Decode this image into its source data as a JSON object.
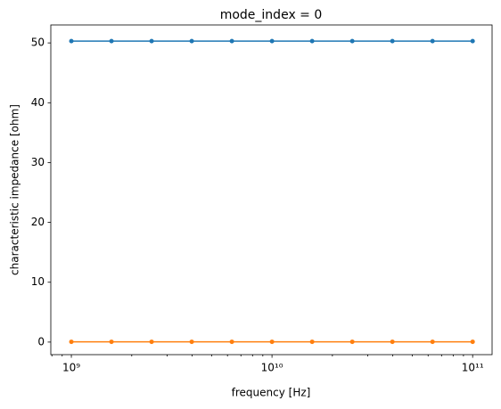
{
  "chart_data": {
    "type": "line",
    "title": "mode_index = 0",
    "x_label": "frequency [Hz]",
    "y_label": "characteristic impedance [ohm]",
    "x": [
      1000000000,
      1584893192,
      2511886432,
      3981071706,
      6309573445,
      10000000000,
      15848931925,
      25118864315,
      39810717055,
      63095734448,
      100000000000
    ],
    "series": [
      {
        "color": "#1f77b4",
        "values": [
          50.3,
          50.3,
          50.3,
          50.3,
          50.3,
          50.3,
          50.3,
          50.3,
          50.3,
          50.3,
          50.3
        ]
      },
      {
        "color": "#ff7f0e",
        "values": [
          0.05,
          0.05,
          0.05,
          0.05,
          0.05,
          0.05,
          0.05,
          0.05,
          0.05,
          0.05,
          0.05
        ]
      }
    ],
    "x_log": true,
    "xlim": [
      790000000,
      125000000000
    ],
    "xticks": [
      {
        "value": 1000000000,
        "label": "10⁹"
      },
      {
        "value": 10000000000,
        "label": "10¹⁰"
      },
      {
        "value": 100000000000,
        "label": "10¹¹"
      }
    ],
    "xminorticks": [
      800000000,
      900000000,
      2000000000,
      3000000000,
      4000000000,
      5000000000,
      6000000000,
      7000000000,
      8000000000,
      9000000000,
      20000000000,
      30000000000,
      40000000000,
      50000000000,
      60000000000,
      70000000000,
      80000000000,
      90000000000
    ],
    "ylim": [
      -2.1,
      53
    ],
    "yticks": [
      0,
      10,
      20,
      30,
      40,
      50
    ]
  }
}
